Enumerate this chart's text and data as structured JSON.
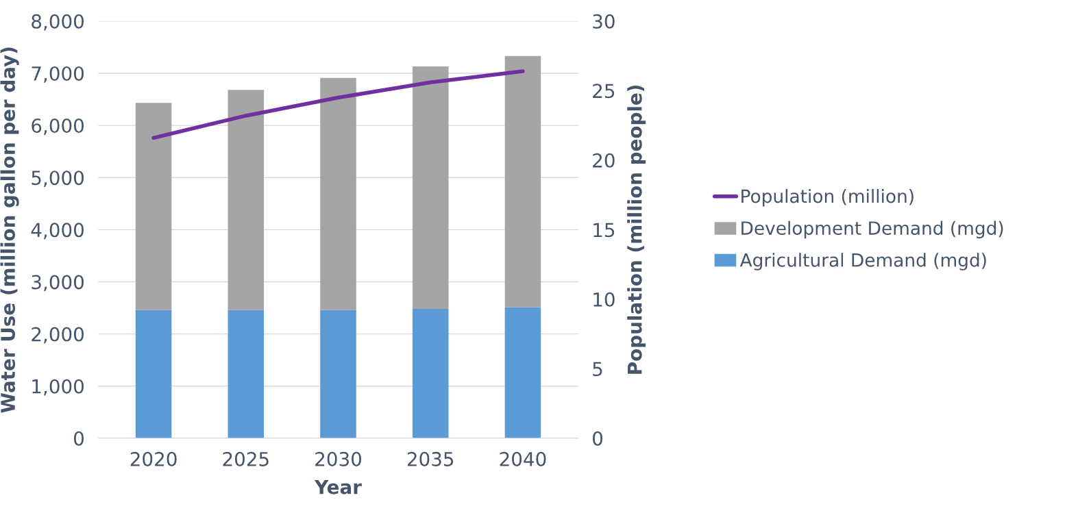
{
  "chart_data": {
    "type": "bar",
    "stacked": true,
    "categories": [
      "2020",
      "2025",
      "2030",
      "2035",
      "2040"
    ],
    "xlabel": "Year",
    "ylabel": "Water Use (million gallon per day)",
    "y2label": "Population (million people)",
    "ylim": [
      0,
      8000
    ],
    "yticks": [
      {
        "value": 0,
        "label": "0"
      },
      {
        "value": 1000,
        "label": "1,000"
      },
      {
        "value": 2000,
        "label": "2,000"
      },
      {
        "value": 3000,
        "label": "3,000"
      },
      {
        "value": 4000,
        "label": "4,000"
      },
      {
        "value": 5000,
        "label": "5,000"
      },
      {
        "value": 6000,
        "label": "6,000"
      },
      {
        "value": 7000,
        "label": "7,000"
      },
      {
        "value": 8000,
        "label": "8,000"
      }
    ],
    "y2lim": [
      0,
      30
    ],
    "y2ticks": [
      0,
      5,
      10,
      15,
      20,
      25,
      30
    ],
    "grid": "y",
    "legend": "right",
    "series": [
      {
        "name": "Agricultural Demand (mgd)",
        "color": "#5b9bd5",
        "values": [
          2460,
          2460,
          2460,
          2480,
          2510
        ]
      },
      {
        "name": "Development Demand (mgd)",
        "color": "#a5a5a5",
        "values": [
          3970,
          4220,
          4450,
          4650,
          4820
        ]
      },
      {
        "name": "Population (million)",
        "type": "line",
        "axis": "y2",
        "color": "#7030a0",
        "values": [
          21.6,
          23.2,
          24.5,
          25.6,
          26.4
        ]
      }
    ]
  }
}
